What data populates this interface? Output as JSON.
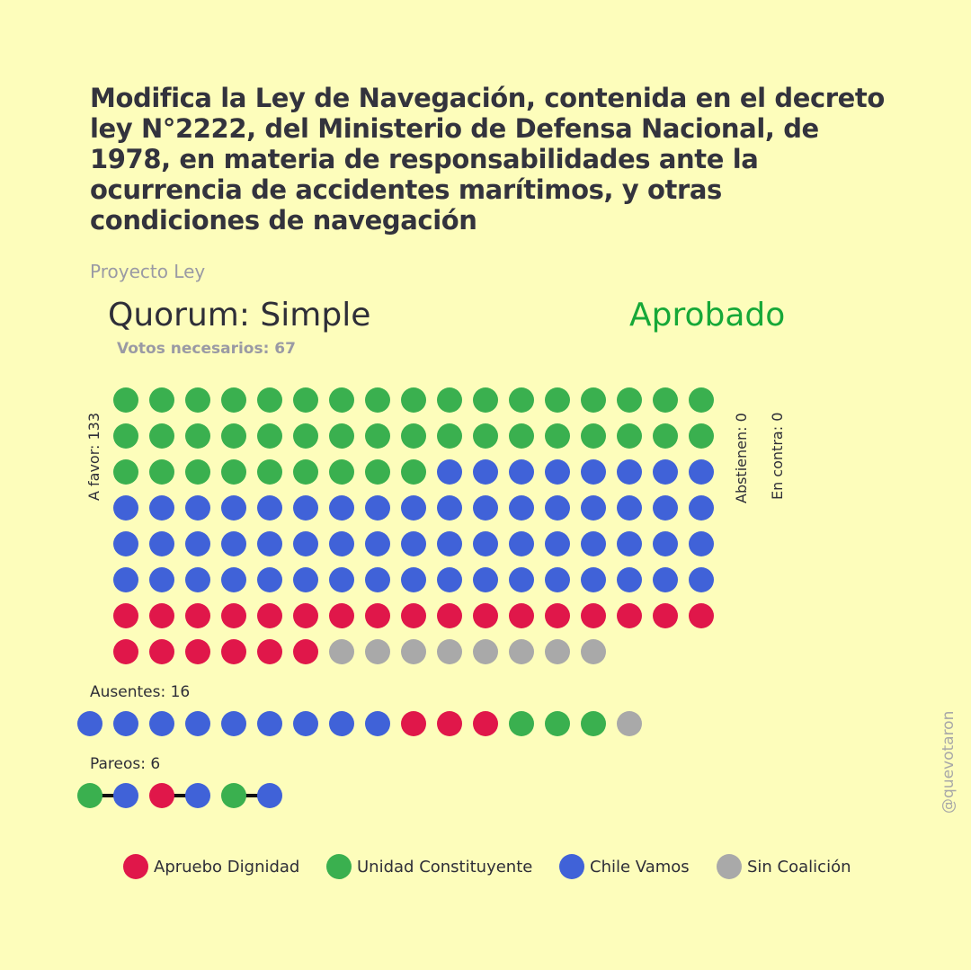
{
  "title": "Modifica la Ley de Navegación, contenida en el decreto ley N°2222, del Ministerio de Defensa Nacional, de 1978, en materia de responsabilidades ante la ocurrencia de accidentes marítimos, y otras condiciones de navegación",
  "subtitle": "Proyecto Ley",
  "quorum": "Quorum: Simple",
  "result": "Aprobado",
  "votes_needed": "Votos necesarios: 67",
  "labels": {
    "favor": "A favor: 133",
    "abstain": "Abstienen: 0",
    "against": "En contra: 0",
    "absent": "Ausentes: 16",
    "pairs": "Pareos: 6"
  },
  "watermark": "@quevotaron",
  "colors": {
    "Apruebo Dignidad": "#e0174a",
    "Unidad Constituyente": "#3ab04f",
    "Chile Vamos": "#4062d8",
    "Sin Coalición": "#a9a9a9"
  },
  "legend": [
    "Apruebo Dignidad",
    "Unidad Constituyente",
    "Chile Vamos",
    "Sin Coalición"
  ],
  "chart_data": {
    "type": "dot-grid",
    "a_favor": [
      {
        "coalition": "Unidad Constituyente",
        "count": 43
      },
      {
        "coalition": "Chile Vamos",
        "count": 59
      },
      {
        "coalition": "Apruebo Dignidad",
        "count": 23
      },
      {
        "coalition": "Sin Coalición",
        "count": 8
      }
    ],
    "abstienen": [],
    "en_contra": [],
    "ausentes": [
      {
        "coalition": "Chile Vamos",
        "count": 9
      },
      {
        "coalition": "Apruebo Dignidad",
        "count": 3
      },
      {
        "coalition": "Unidad Constituyente",
        "count": 3
      },
      {
        "coalition": "Sin Coalición",
        "count": 1
      }
    ],
    "pareos": [
      [
        "Unidad Constituyente",
        "Chile Vamos"
      ],
      [
        "Apruebo Dignidad",
        "Chile Vamos"
      ],
      [
        "Unidad Constituyente",
        "Chile Vamos"
      ]
    ]
  }
}
